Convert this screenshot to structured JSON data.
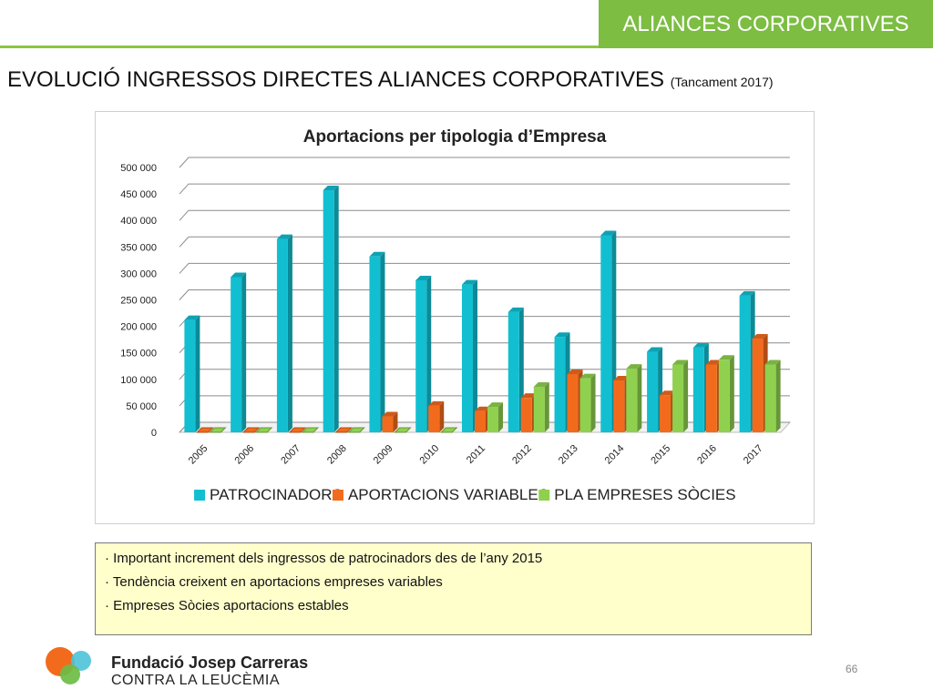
{
  "header": {
    "section_label": "ALIANCES CORPORATIVES",
    "title": "EVOLUCIÓ INGRESSOS DIRECTES ALIANCES CORPORATIVES",
    "subtitle": "(Tancament 2017)"
  },
  "chart_data": {
    "type": "bar",
    "title": "Aportacions per tipologia d’Empresa",
    "categories": [
      "2005",
      "2006",
      "2007",
      "2008",
      "2009",
      "2010",
      "2011",
      "2012",
      "2013",
      "2014",
      "2015",
      "2016",
      "2017"
    ],
    "series": [
      {
        "name": "PATROCINADORS",
        "color": "#12bfd1",
        "values": [
          212000,
          293000,
          365000,
          457000,
          332000,
          287000,
          279000,
          227000,
          180000,
          372000,
          152000,
          160000,
          258000
        ]
      },
      {
        "name": "APORTACIONS VARIABLES",
        "color": "#f26b1d",
        "values": [
          0,
          0,
          0,
          0,
          30000,
          50000,
          40000,
          65000,
          110000,
          98000,
          70000,
          128000,
          177000
        ]
      },
      {
        "name": "PLA EMPRESES SÒCIES",
        "color": "#8fd14f",
        "values": [
          0,
          0,
          0,
          0,
          0,
          0,
          48000,
          86000,
          102000,
          120000,
          128000,
          137000,
          128000
        ]
      }
    ],
    "y_ticks": [
      "0",
      "50 000",
      "100 000",
      "150 000",
      "200 000",
      "250 000",
      "300 000",
      "350 000",
      "400 000",
      "450 000",
      "500 000"
    ],
    "ylim": [
      0,
      500000
    ],
    "grid": true,
    "legend_position": "bottom"
  },
  "notes": {
    "items": [
      "· Important increment dels ingressos de patrocinadors des de l’any 2015",
      "· Tendència creixent en aportacions empreses variables",
      "· Empreses Sòcies aportacions estables"
    ]
  },
  "footer": {
    "brand_name": "Fundació Josep Carreras",
    "brand_tagline": "CONTRA LA LEUCÈMIA",
    "page_number": "66"
  }
}
